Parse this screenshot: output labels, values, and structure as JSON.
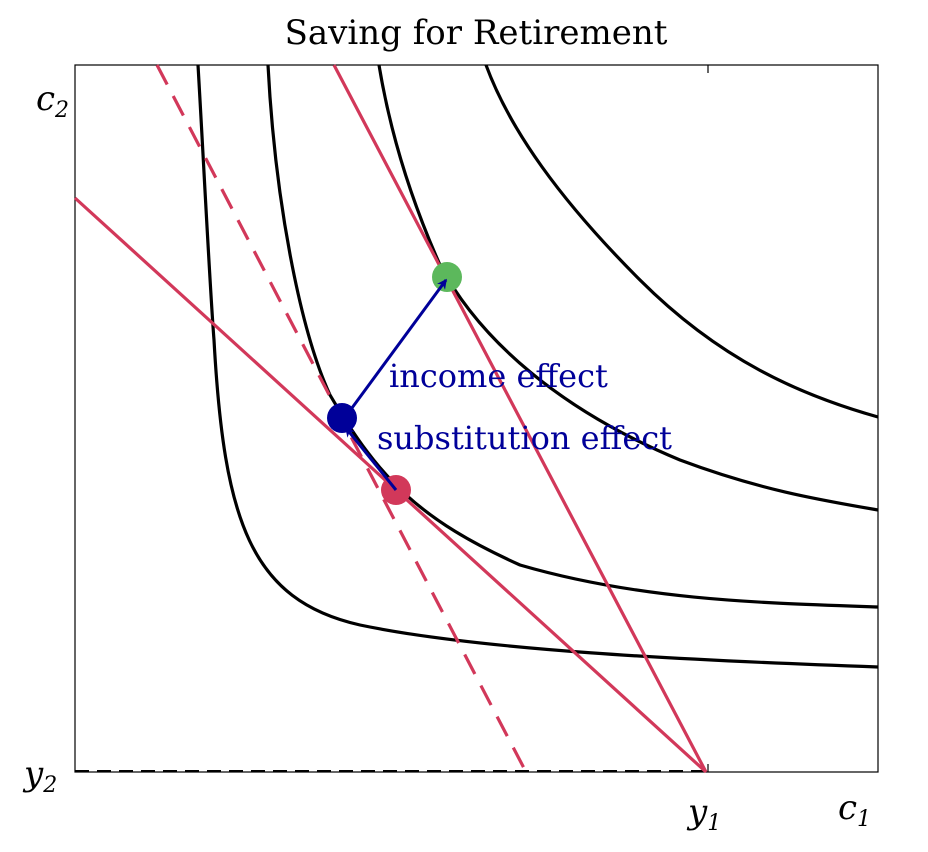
{
  "title": "Saving for Retirement",
  "labels": {
    "y_axis": "c",
    "y_axis_sub": "2",
    "x_axis": "c",
    "x_axis_sub": "1",
    "x_endowment": "y",
    "x_endowment_sub": "1",
    "y_endowment": "y",
    "y_endowment_sub": "2"
  },
  "annotations": {
    "income_effect": "income effect",
    "substitution_effect": "substitution effect"
  },
  "colors": {
    "budget_line": "#d2385a",
    "indifference_curve": "#000000",
    "arrow": "#000099",
    "original_point": "#d2385a",
    "compensated_point": "#000099",
    "new_point": "#5cb85c"
  }
}
